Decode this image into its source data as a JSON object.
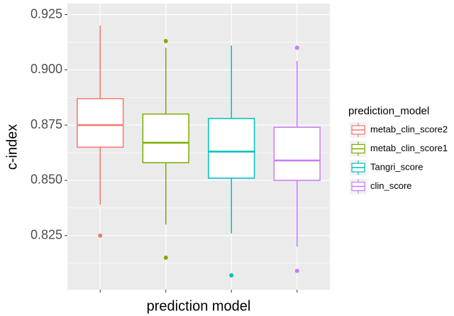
{
  "chart_data": {
    "type": "boxplot",
    "x_label": "prediction model",
    "y_label": "c-index",
    "categories": [
      null,
      null,
      null,
      null
    ],
    "ylim": [
      0.8005,
      0.93
    ],
    "yticks": [
      0.825,
      {
        "value": 0.85,
        "label": "0.850"
      },
      0.875,
      {
        "value": 0.9,
        "label": "0.900"
      },
      0.925
    ],
    "grid": true,
    "legend_title": "prediction_model",
    "legend_position": "right",
    "series": [
      {
        "name": "metab_clin_score2",
        "color": "#f8766d",
        "whisker_low": 0.839,
        "q1": 0.865,
        "median": 0.875,
        "q3": 0.887,
        "whisker_high": 0.92,
        "outliers": [
          0.825
        ]
      },
      {
        "name": "metab_clin_score1",
        "color": "#7cae00",
        "whisker_low": 0.83,
        "q1": 0.858,
        "median": 0.867,
        "q3": 0.88,
        "whisker_high": 0.91,
        "outliers": [
          0.913,
          0.815
        ]
      },
      {
        "name": "Tangri_score",
        "color": "#00bfc4",
        "whisker_low": 0.826,
        "q1": 0.851,
        "median": 0.863,
        "q3": 0.878,
        "whisker_high": 0.911,
        "outliers": [
          0.807
        ]
      },
      {
        "name": "clin_score",
        "color": "#c77cff",
        "whisker_low": 0.82,
        "q1": 0.85,
        "median": 0.859,
        "q3": 0.874,
        "whisker_high": 0.904,
        "outliers": [
          0.91,
          0.809
        ]
      }
    ]
  }
}
